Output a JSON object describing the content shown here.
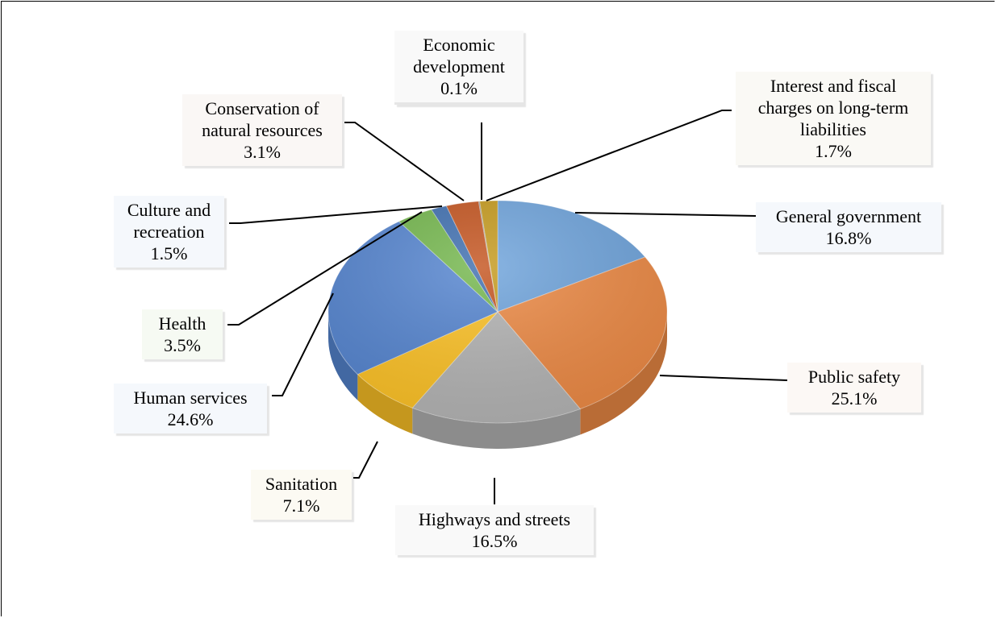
{
  "chart_data": {
    "type": "pie",
    "title": "",
    "slices": [
      {
        "label": "General government",
        "pct_text": "16.8%",
        "value": 16.8,
        "color": "#6fa4dc"
      },
      {
        "label": "Public safety",
        "pct_text": "25.1%",
        "value": 25.1,
        "color": "#ed8a45"
      },
      {
        "label": "Highways and streets",
        "pct_text": "16.5%",
        "value": 16.5,
        "color": "#b4b4b4"
      },
      {
        "label": "Sanitation",
        "pct_text": "7.1%",
        "value": 7.1,
        "color": "#fdc226"
      },
      {
        "label": "Human services",
        "pct_text": "24.6%",
        "value": 24.6,
        "color": "#5585d0"
      },
      {
        "label": "Health",
        "pct_text": "3.5%",
        "value": 3.5,
        "color": "#74b74d"
      },
      {
        "label": "Culture and recreation",
        "pct_text": "1.5%",
        "value": 1.5,
        "color": "#3f6fb0"
      },
      {
        "label": "Conservation of natural resources",
        "pct_text": "3.1%",
        "value": 3.1,
        "color": "#c4541f"
      },
      {
        "label": "Economic development",
        "pct_text": "0.1%",
        "value": 0.1,
        "color": "#7f7f7f"
      },
      {
        "label": "Interest and fiscal charges on long-term liabilities",
        "pct_text": "1.7%",
        "value": 1.7,
        "color": "#c59a1d"
      }
    ]
  },
  "labels": {
    "general_government": {
      "line1": "General government",
      "pct": "16.8%"
    },
    "public_safety": {
      "line1": "Public safety",
      "pct": "25.1%"
    },
    "highways": {
      "line1": "Highways and streets",
      "pct": "16.5%"
    },
    "sanitation": {
      "line1": "Sanitation",
      "pct": "7.1%"
    },
    "human_services": {
      "line1": "Human services",
      "pct": "24.6%"
    },
    "health": {
      "line1": "Health",
      "pct": "3.5%"
    },
    "culture": {
      "line1": "Culture and",
      "line2": "recreation",
      "pct": "1.5%"
    },
    "conservation": {
      "line1": "Conservation of",
      "line2": "natural resources",
      "pct": "3.1%"
    },
    "economic": {
      "line1": "Economic",
      "line2": "development",
      "pct": "0.1%"
    },
    "interest": {
      "line1": "Interest and fiscal",
      "line2": "charges on long-term",
      "line3": "liabilities",
      "pct": "1.7%"
    }
  }
}
